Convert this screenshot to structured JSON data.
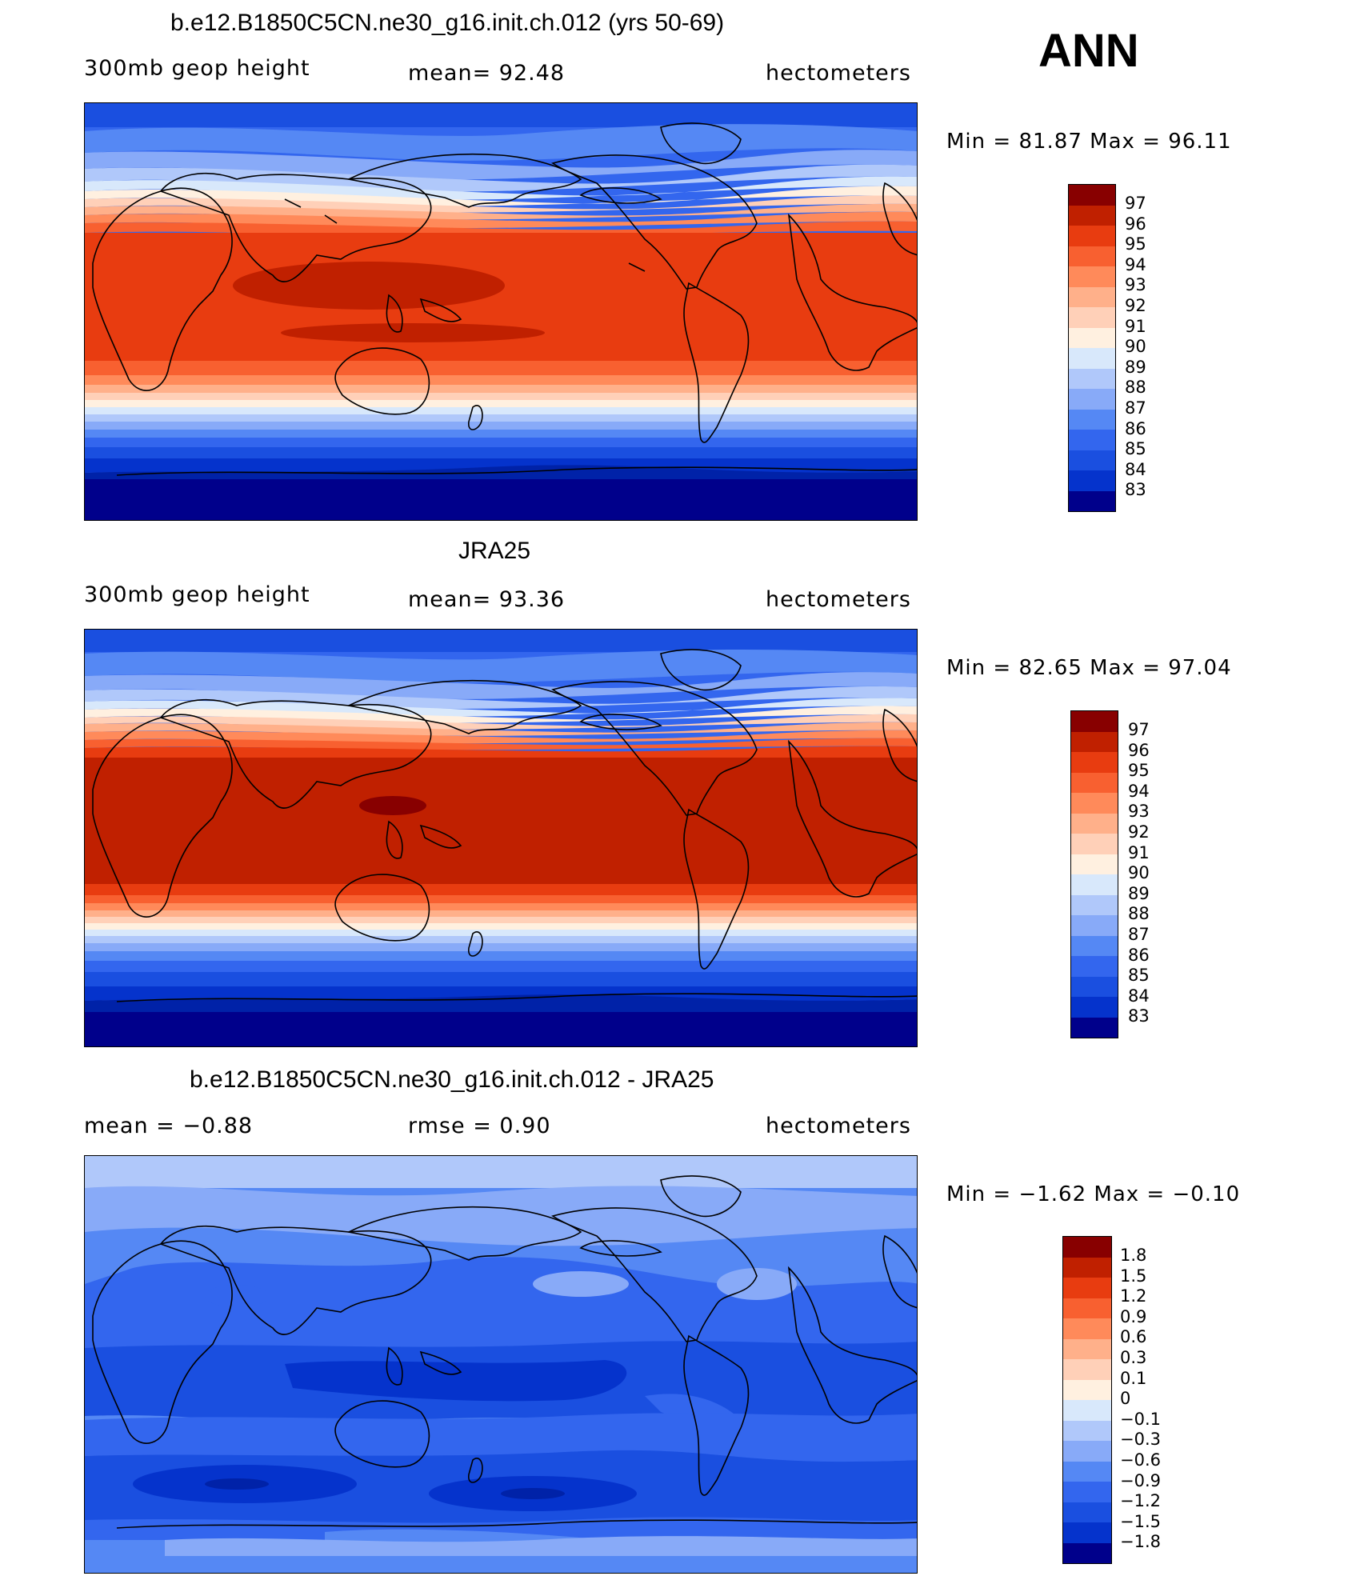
{
  "season": "ANN",
  "panels": [
    {
      "title": "b.e12.B1850C5CN.ne30_g16.init.ch.012 (yrs 50-69)",
      "left": "300mb geop height",
      "center": "mean=  92.48",
      "right": "hectometers",
      "minmax": "Min =   81.87 Max =   96.11"
    },
    {
      "title": "JRA25",
      "left": "300mb geop height",
      "center": "mean=  93.36",
      "right": "hectometers",
      "minmax": "Min =   82.65 Max =   97.04"
    },
    {
      "title": "b.e12.B1850C5CN.ne30_g16.init.ch.012 - JRA25",
      "left": "mean =   −0.88",
      "center": "rmse =    0.90",
      "right": "hectometers",
      "minmax": "Min =  −1.62 Max =  −0.10"
    }
  ],
  "colors": [
    "#00008b",
    "#0022a8",
    "#0533cc",
    "#1a4fe0",
    "#3366ee",
    "#5588f4",
    "#88aaf8",
    "#b0c8fa",
    "#d8e8fb",
    "#fff0e0",
    "#ffd0b8",
    "#ffb08a",
    "#ff8a5a",
    "#f86030",
    "#e83c10",
    "#c02000",
    "#880000"
  ],
  "chart_data": [
    {
      "type": "heatmap",
      "title": "b.e12.B1850C5CN.ne30_g16.init.ch.012 (yrs 50-69)",
      "variable": "300mb geop height",
      "units": "hectometers",
      "mean": 92.48,
      "min": 81.87,
      "max": 96.11,
      "legend_labels": [
        "97",
        "96",
        "95",
        "94",
        "93",
        "92",
        "91",
        "90",
        "89",
        "88",
        "87",
        "86",
        "85",
        "84",
        "83"
      ]
    },
    {
      "type": "heatmap",
      "title": "JRA25",
      "variable": "300mb geop height",
      "units": "hectometers",
      "mean": 93.36,
      "min": 82.65,
      "max": 97.04,
      "legend_labels": [
        "97",
        "96",
        "95",
        "94",
        "93",
        "92",
        "91",
        "90",
        "89",
        "88",
        "87",
        "86",
        "85",
        "84",
        "83"
      ]
    },
    {
      "type": "heatmap",
      "title": "b.e12.B1850C5CN.ne30_g16.init.ch.012 - JRA25",
      "variable": "300mb geop height difference",
      "units": "hectometers",
      "mean": -0.88,
      "rmse": 0.9,
      "min": -1.62,
      "max": -0.1,
      "legend_labels": [
        "1.8",
        "1.5",
        "1.2",
        "0.9",
        "0.6",
        "0.3",
        "0.1",
        "0",
        "−0.1",
        "−0.3",
        "−0.6",
        "−0.9",
        "−1.2",
        "−1.5",
        "−1.8"
      ]
    }
  ]
}
